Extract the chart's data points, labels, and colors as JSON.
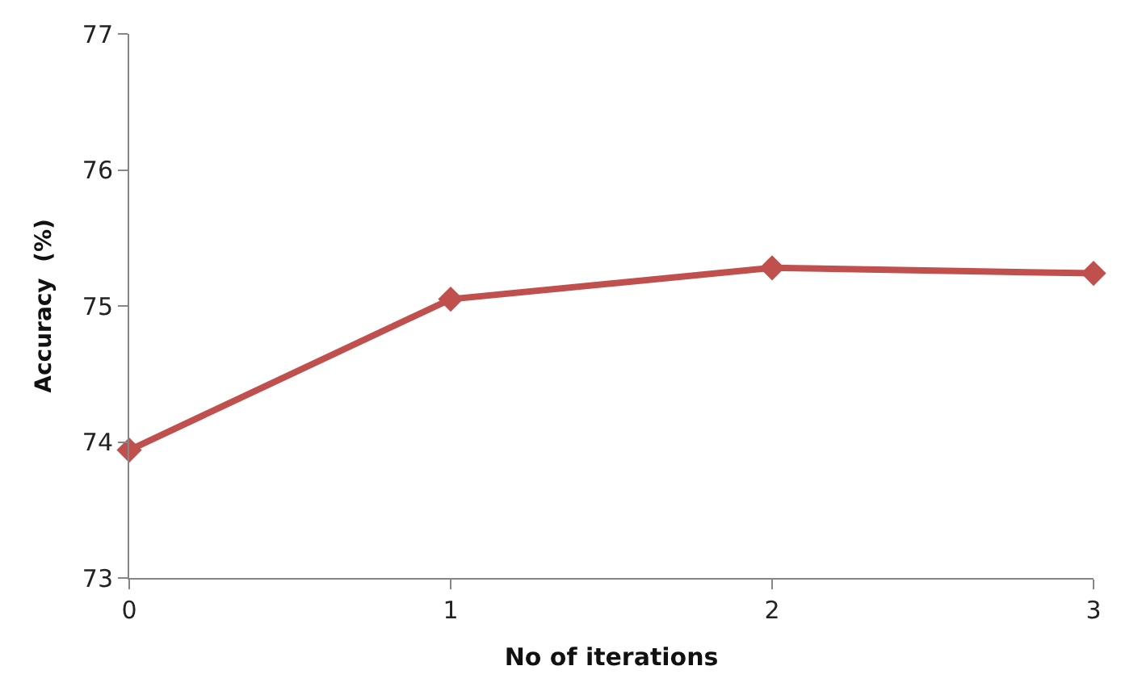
{
  "chart_data": {
    "type": "line",
    "xlabel": "No of iterations",
    "ylabel": "Accuracy  (%)",
    "x": [
      0,
      1,
      2,
      3
    ],
    "series": [
      {
        "color": "#c0504d",
        "values": [
          73.94,
          75.05,
          75.28,
          75.24
        ]
      }
    ],
    "xlim": [
      0,
      3
    ],
    "xticks": [
      0,
      1,
      2,
      3
    ],
    "ylim": [
      73,
      77
    ],
    "yticks": [
      73,
      74,
      75,
      76,
      77
    ],
    "marker": "diamond",
    "line_style": "solid"
  }
}
